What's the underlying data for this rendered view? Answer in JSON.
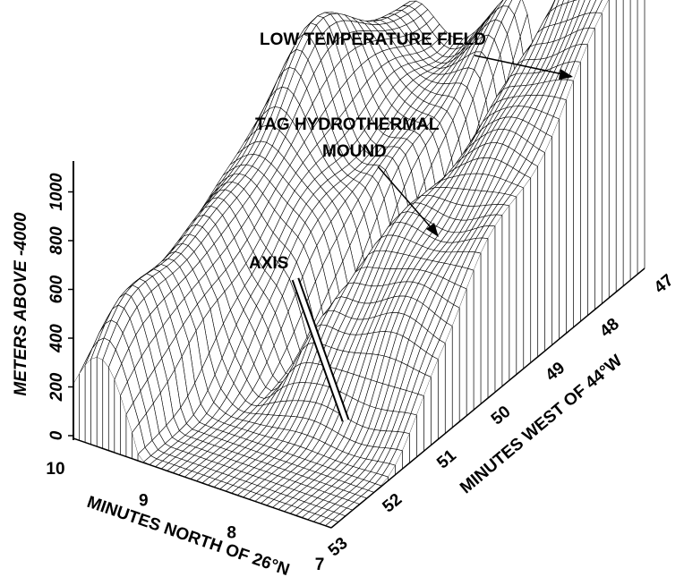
{
  "annotations": {
    "low_temp": "LOW TEMPERATURE FIELD",
    "tag": [
      "TAG HYDROTHERMAL",
      "MOUND"
    ],
    "axis": "AXIS"
  },
  "vertical_axis": {
    "label": "METERS ABOVE -4000",
    "ticks": [
      0,
      200,
      400,
      600,
      800,
      1000
    ]
  },
  "north_axis": {
    "label": "MINUTES NORTH OF 26°N",
    "ticks": [
      10,
      9,
      8,
      7
    ]
  },
  "west_axis": {
    "label": "MINUTES WEST OF 44°W",
    "ticks": [
      53,
      52,
      51,
      50,
      49,
      48,
      47
    ]
  }
}
